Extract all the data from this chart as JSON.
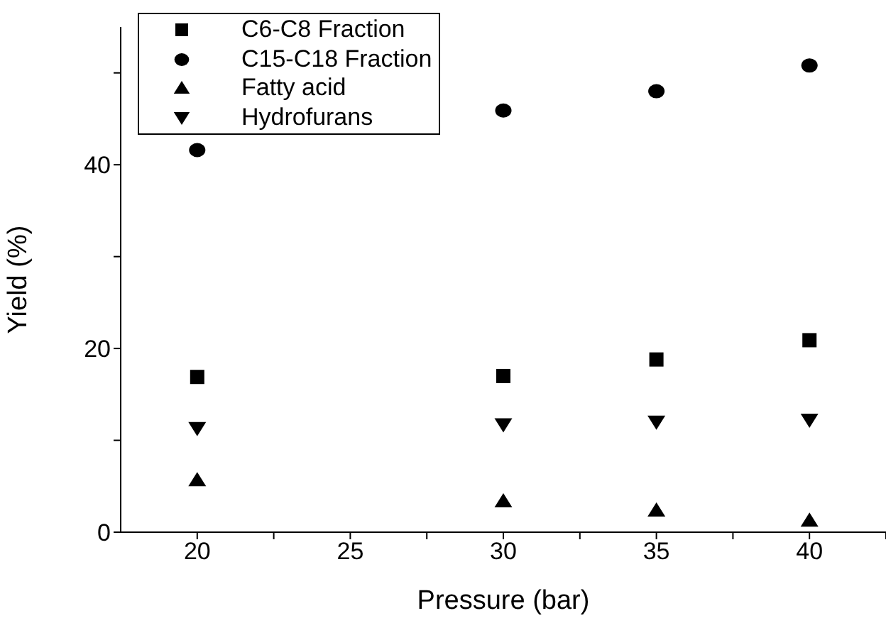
{
  "chart_data": {
    "type": "scatter",
    "xlabel": "Pressure (bar)",
    "ylabel": "Yield (%)",
    "x": [
      20,
      30,
      35,
      40
    ],
    "series": [
      {
        "name": "C6-C8 Fraction",
        "color": "#000000",
        "marker": "square",
        "values": [
          16.9,
          17.0,
          18.8,
          20.9
        ]
      },
      {
        "name": "C15-C18 Fraction",
        "color": "#000000",
        "marker": "circle",
        "values": [
          41.6,
          45.9,
          48.0,
          50.8
        ]
      },
      {
        "name": "Fatty acid",
        "color": "#000000",
        "marker": "triangle",
        "values": [
          5.7,
          3.4,
          2.4,
          1.3
        ]
      },
      {
        "name": "Hydrofurans",
        "color": "#000000",
        "marker": "triangle-down",
        "values": [
          11.3,
          11.7,
          12.0,
          12.2
        ]
      }
    ],
    "xlim": [
      17.5,
      42.5
    ],
    "xticks": [
      20,
      {
        "value": 22.5,
        "label": null
      },
      25,
      {
        "value": 27.5,
        "label": null
      },
      30,
      {
        "value": 32.5,
        "label": null
      },
      35,
      {
        "value": 37.5,
        "label": null
      },
      40,
      {
        "value": 42.5,
        "label": null
      }
    ],
    "ylim": [
      0,
      55
    ],
    "yticks": [
      0,
      {
        "value": 10,
        "label": null
      },
      20,
      {
        "value": 30,
        "label": null
      },
      40,
      {
        "value": 50,
        "label": null
      }
    ],
    "grid": false,
    "legend": "top left"
  }
}
